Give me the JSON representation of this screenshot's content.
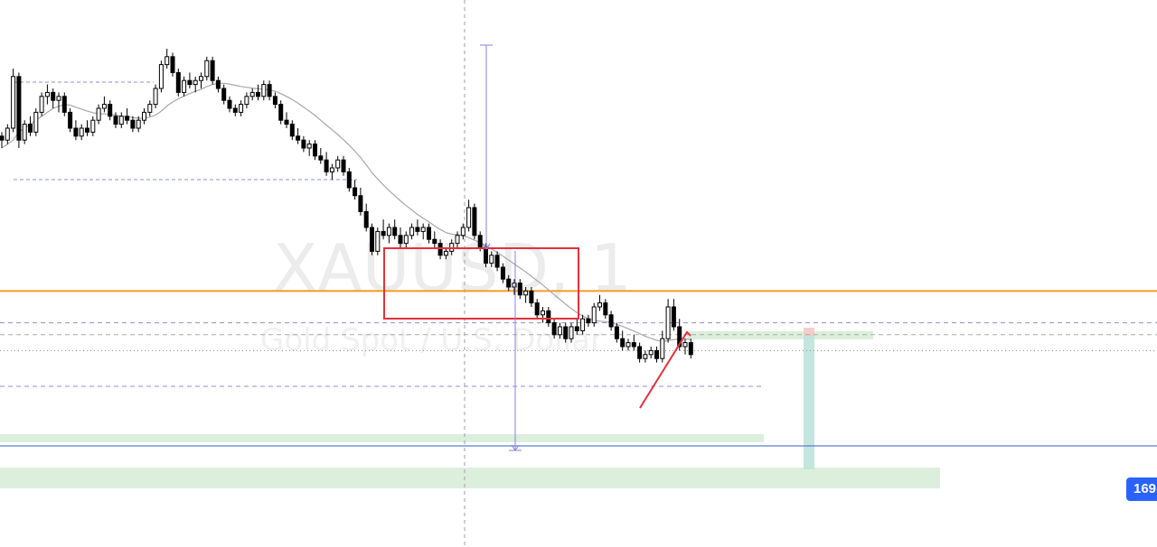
{
  "watermark": {
    "symbol": "XAUUSD, 1",
    "description": "Gold Spot / U.S. Dollar"
  },
  "price_badge": {
    "text": "169",
    "color": "#2962ff"
  },
  "colors": {
    "candle": "#000000",
    "moving_average": "#a8a8a8",
    "orange_level": "#f59a23",
    "blue_level": "#5b7fd6",
    "dashed_level": "#8f8fd0",
    "red_drawing": "#e0323c",
    "zone_green": "#d6ecd6",
    "zone_teal": "#bfe2dc",
    "measure_arrow": "#8c7fd6",
    "crosshair": "#9aa0a6"
  },
  "chart_data": {
    "type": "candlestick",
    "symbol": "XAUUSD",
    "timeframe": "1",
    "candles": [
      {
        "o": 73,
        "h": 74,
        "l": 70,
        "c": 72
      },
      {
        "o": 72,
        "h": 76,
        "l": 71,
        "c": 75
      },
      {
        "o": 75,
        "h": 90,
        "l": 74,
        "c": 88
      },
      {
        "o": 88,
        "h": 89,
        "l": 70,
        "c": 72
      },
      {
        "o": 72,
        "h": 77,
        "l": 71,
        "c": 76
      },
      {
        "o": 76,
        "h": 78,
        "l": 73,
        "c": 74
      },
      {
        "o": 74,
        "h": 80,
        "l": 73,
        "c": 79
      },
      {
        "o": 79,
        "h": 84,
        "l": 78,
        "c": 83
      },
      {
        "o": 83,
        "h": 86,
        "l": 81,
        "c": 84
      },
      {
        "o": 84,
        "h": 85,
        "l": 80,
        "c": 82
      },
      {
        "o": 82,
        "h": 84,
        "l": 79,
        "c": 83
      },
      {
        "o": 83,
        "h": 84,
        "l": 78,
        "c": 79
      },
      {
        "o": 79,
        "h": 80,
        "l": 74,
        "c": 75
      },
      {
        "o": 75,
        "h": 77,
        "l": 72,
        "c": 73
      },
      {
        "o": 73,
        "h": 76,
        "l": 72,
        "c": 75
      },
      {
        "o": 75,
        "h": 77,
        "l": 73,
        "c": 74
      },
      {
        "o": 74,
        "h": 78,
        "l": 73,
        "c": 77
      },
      {
        "o": 77,
        "h": 81,
        "l": 76,
        "c": 80
      },
      {
        "o": 80,
        "h": 83,
        "l": 79,
        "c": 81
      },
      {
        "o": 81,
        "h": 82,
        "l": 77,
        "c": 78
      },
      {
        "o": 78,
        "h": 79,
        "l": 75,
        "c": 76
      },
      {
        "o": 76,
        "h": 79,
        "l": 75,
        "c": 78
      },
      {
        "o": 78,
        "h": 80,
        "l": 76,
        "c": 77
      },
      {
        "o": 77,
        "h": 78,
        "l": 74,
        "c": 75
      },
      {
        "o": 75,
        "h": 78,
        "l": 74,
        "c": 77
      },
      {
        "o": 77,
        "h": 80,
        "l": 76,
        "c": 79
      },
      {
        "o": 79,
        "h": 82,
        "l": 78,
        "c": 81
      },
      {
        "o": 81,
        "h": 86,
        "l": 80,
        "c": 85
      },
      {
        "o": 85,
        "h": 92,
        "l": 84,
        "c": 91
      },
      {
        "o": 91,
        "h": 95,
        "l": 90,
        "c": 93
      },
      {
        "o": 93,
        "h": 94,
        "l": 88,
        "c": 89
      },
      {
        "o": 89,
        "h": 90,
        "l": 83,
        "c": 84
      },
      {
        "o": 84,
        "h": 88,
        "l": 83,
        "c": 87
      },
      {
        "o": 87,
        "h": 89,
        "l": 85,
        "c": 86
      },
      {
        "o": 86,
        "h": 88,
        "l": 84,
        "c": 87
      },
      {
        "o": 87,
        "h": 89,
        "l": 85,
        "c": 88
      },
      {
        "o": 88,
        "h": 93,
        "l": 87,
        "c": 92
      },
      {
        "o": 92,
        "h": 93,
        "l": 86,
        "c": 87
      },
      {
        "o": 87,
        "h": 88,
        "l": 84,
        "c": 85
      },
      {
        "o": 85,
        "h": 86,
        "l": 81,
        "c": 82
      },
      {
        "o": 82,
        "h": 83,
        "l": 79,
        "c": 80
      },
      {
        "o": 80,
        "h": 81,
        "l": 78,
        "c": 79
      },
      {
        "o": 79,
        "h": 82,
        "l": 78,
        "c": 81
      },
      {
        "o": 81,
        "h": 84,
        "l": 80,
        "c": 83
      },
      {
        "o": 83,
        "h": 85,
        "l": 82,
        "c": 84
      },
      {
        "o": 84,
        "h": 86,
        "l": 82,
        "c": 83
      },
      {
        "o": 83,
        "h": 87,
        "l": 82,
        "c": 86
      },
      {
        "o": 86,
        "h": 87,
        "l": 82,
        "c": 83
      },
      {
        "o": 83,
        "h": 84,
        "l": 80,
        "c": 81
      },
      {
        "o": 81,
        "h": 82,
        "l": 76,
        "c": 77
      },
      {
        "o": 77,
        "h": 79,
        "l": 75,
        "c": 76
      },
      {
        "o": 76,
        "h": 77,
        "l": 72,
        "c": 73
      },
      {
        "o": 73,
        "h": 75,
        "l": 71,
        "c": 72
      },
      {
        "o": 72,
        "h": 73,
        "l": 69,
        "c": 70
      },
      {
        "o": 70,
        "h": 72,
        "l": 68,
        "c": 71
      },
      {
        "o": 71,
        "h": 72,
        "l": 67,
        "c": 68
      },
      {
        "o": 68,
        "h": 70,
        "l": 66,
        "c": 67
      },
      {
        "o": 67,
        "h": 69,
        "l": 63,
        "c": 64
      },
      {
        "o": 64,
        "h": 66,
        "l": 62,
        "c": 65
      },
      {
        "o": 65,
        "h": 68,
        "l": 64,
        "c": 67
      },
      {
        "o": 67,
        "h": 68,
        "l": 63,
        "c": 64
      },
      {
        "o": 64,
        "h": 65,
        "l": 59,
        "c": 60
      },
      {
        "o": 60,
        "h": 62,
        "l": 57,
        "c": 58
      },
      {
        "o": 58,
        "h": 60,
        "l": 53,
        "c": 54
      },
      {
        "o": 54,
        "h": 56,
        "l": 49,
        "c": 50
      },
      {
        "o": 50,
        "h": 51,
        "l": 43,
        "c": 44
      },
      {
        "o": 44,
        "h": 50,
        "l": 43,
        "c": 49
      },
      {
        "o": 49,
        "h": 52,
        "l": 47,
        "c": 48
      },
      {
        "o": 48,
        "h": 51,
        "l": 46,
        "c": 50
      },
      {
        "o": 50,
        "h": 52,
        "l": 47,
        "c": 48
      },
      {
        "o": 48,
        "h": 50,
        "l": 45,
        "c": 46
      },
      {
        "o": 46,
        "h": 49,
        "l": 45,
        "c": 48
      },
      {
        "o": 48,
        "h": 51,
        "l": 47,
        "c": 50
      },
      {
        "o": 50,
        "h": 52,
        "l": 48,
        "c": 49
      },
      {
        "o": 49,
        "h": 51,
        "l": 47,
        "c": 50
      },
      {
        "o": 50,
        "h": 51,
        "l": 46,
        "c": 47
      },
      {
        "o": 47,
        "h": 49,
        "l": 45,
        "c": 46
      },
      {
        "o": 46,
        "h": 47,
        "l": 42,
        "c": 43
      },
      {
        "o": 43,
        "h": 45,
        "l": 42,
        "c": 44
      },
      {
        "o": 44,
        "h": 47,
        "l": 43,
        "c": 46
      },
      {
        "o": 46,
        "h": 49,
        "l": 45,
        "c": 48
      },
      {
        "o": 48,
        "h": 51,
        "l": 47,
        "c": 50
      },
      {
        "o": 50,
        "h": 57,
        "l": 49,
        "c": 55
      },
      {
        "o": 55,
        "h": 56,
        "l": 47,
        "c": 48
      },
      {
        "o": 48,
        "h": 49,
        "l": 44,
        "c": 45
      },
      {
        "o": 45,
        "h": 46,
        "l": 40,
        "c": 41
      },
      {
        "o": 41,
        "h": 44,
        "l": 40,
        "c": 43
      },
      {
        "o": 43,
        "h": 44,
        "l": 39,
        "c": 40
      },
      {
        "o": 40,
        "h": 41,
        "l": 36,
        "c": 37
      },
      {
        "o": 37,
        "h": 38,
        "l": 34,
        "c": 35
      },
      {
        "o": 35,
        "h": 37,
        "l": 33,
        "c": 36
      },
      {
        "o": 36,
        "h": 37,
        "l": 32,
        "c": 33
      },
      {
        "o": 33,
        "h": 35,
        "l": 31,
        "c": 34
      },
      {
        "o": 34,
        "h": 35,
        "l": 30,
        "c": 31
      },
      {
        "o": 31,
        "h": 32,
        "l": 27,
        "c": 28
      },
      {
        "o": 28,
        "h": 30,
        "l": 26,
        "c": 29
      },
      {
        "o": 29,
        "h": 30,
        "l": 25,
        "c": 26
      },
      {
        "o": 26,
        "h": 27,
        "l": 22,
        "c": 23
      },
      {
        "o": 23,
        "h": 26,
        "l": 22,
        "c": 25
      },
      {
        "o": 25,
        "h": 26,
        "l": 21,
        "c": 22
      },
      {
        "o": 22,
        "h": 26,
        "l": 21,
        "c": 25
      },
      {
        "o": 25,
        "h": 27,
        "l": 23,
        "c": 24
      },
      {
        "o": 24,
        "h": 28,
        "l": 23,
        "c": 27
      },
      {
        "o": 27,
        "h": 28,
        "l": 25,
        "c": 26
      },
      {
        "o": 26,
        "h": 31,
        "l": 25,
        "c": 30
      },
      {
        "o": 30,
        "h": 33,
        "l": 29,
        "c": 31
      },
      {
        "o": 31,
        "h": 32,
        "l": 27,
        "c": 28
      },
      {
        "o": 28,
        "h": 29,
        "l": 24,
        "c": 25
      },
      {
        "o": 25,
        "h": 26,
        "l": 21,
        "c": 22
      },
      {
        "o": 22,
        "h": 24,
        "l": 19,
        "c": 20
      },
      {
        "o": 20,
        "h": 22,
        "l": 19,
        "c": 21
      },
      {
        "o": 21,
        "h": 23,
        "l": 19,
        "c": 20
      },
      {
        "o": 20,
        "h": 21,
        "l": 16,
        "c": 17
      },
      {
        "o": 17,
        "h": 19,
        "l": 16,
        "c": 18
      },
      {
        "o": 18,
        "h": 20,
        "l": 17,
        "c": 19
      },
      {
        "o": 19,
        "h": 20,
        "l": 16,
        "c": 17
      },
      {
        "o": 17,
        "h": 24,
        "l": 16,
        "c": 22
      },
      {
        "o": 22,
        "h": 32,
        "l": 21,
        "c": 30
      },
      {
        "o": 30,
        "h": 32,
        "l": 24,
        "c": 25
      },
      {
        "o": 25,
        "h": 27,
        "l": 19,
        "c": 20
      },
      {
        "o": 20,
        "h": 22,
        "l": 18,
        "c": 21
      },
      {
        "o": 21,
        "h": 22,
        "l": 17,
        "c": 18
      }
    ],
    "moving_average": [
      70,
      71,
      72,
      74,
      75,
      76,
      77,
      78,
      79,
      80,
      80.5,
      81,
      80.8,
      80.3,
      79.8,
      79.3,
      78.9,
      78.6,
      78.6,
      78.5,
      78.3,
      78,
      77.9,
      77.7,
      77.5,
      77.5,
      77.8,
      78.3,
      79.3,
      80.6,
      81.6,
      82.4,
      83.1,
      83.7,
      84.3,
      84.8,
      85.5,
      86,
      86.3,
      86.3,
      86.1,
      85.8,
      85.5,
      85.3,
      85.1,
      84.9,
      84.8,
      84.6,
      84.3,
      83.7,
      83,
      82.2,
      81.3,
      80.3,
      79.3,
      78.2,
      77,
      75.8,
      74.6,
      73.4,
      72.1,
      70.7,
      69.2,
      67.6,
      65.8,
      63.8,
      62.2,
      60.7,
      59.3,
      58,
      56.7,
      55.5,
      54.4,
      53.3,
      52.3,
      51.4,
      50.4,
      49.5,
      48.7,
      48.3,
      48.2,
      47.9,
      47.4,
      46.8,
      46.2,
      45.4,
      44.6,
      43.7,
      42.8,
      41.8,
      40.8,
      39.8,
      38.8,
      37.7,
      36.6,
      35.5,
      34.3,
      33.1,
      31.9,
      30.7,
      29.6,
      28.6,
      27.7,
      27,
      26.6,
      26.4,
      26.3,
      26,
      25.6,
      25.1,
      24.5,
      23.9,
      23.3,
      22.6,
      22.1,
      21.6,
      21.3,
      21.5,
      21.8,
      21.9,
      21.9,
      21.8
    ],
    "levels": [
      {
        "value": 34,
        "kind": "solid",
        "color": "orange"
      },
      {
        "value": 26,
        "kind": "dashed"
      },
      {
        "value": 23,
        "kind": "dashed"
      },
      {
        "value": 19,
        "kind": "dotted"
      },
      {
        "value": 10,
        "kind": "dashed"
      },
      {
        "value": -5,
        "kind": "solid",
        "color": "blue"
      }
    ],
    "x_axis_labels": [],
    "y_axis_labels": []
  }
}
